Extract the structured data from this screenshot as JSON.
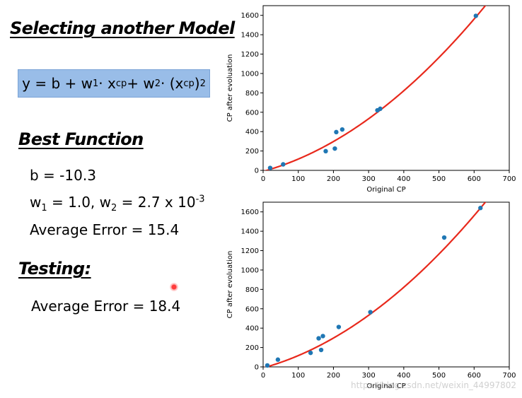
{
  "left_panel": {
    "title": "Selecting another Model",
    "formula": {
      "lhs": "y = b + w",
      "w1_sub": "1",
      "dot1": " · x",
      "xcp_sub": "cp",
      "plus2": " + w",
      "w2_sub": "2",
      "dot2": " · (x",
      "xcp2_sub": "cp",
      "close": ")",
      "exp": "2"
    },
    "best_function_title": "Best Function",
    "b_line": "b = -10.3",
    "w_line": {
      "w1": "w",
      "w1_sub": "1",
      "w1_val": " = 1.0, w",
      "w2_sub": "2",
      "w2_val": " = 2.7 x 10",
      "exp": "-3"
    },
    "average_error_train": "Average Error = 15.4",
    "testing_title": "Testing:",
    "average_error_test": "Average Error = 18.4"
  },
  "watermark": "https://blog.csdn.net/weixin_44997802",
  "colors": {
    "formula_bg": "#99bde8",
    "point": "#1f77b4",
    "curve": "#e8291c"
  },
  "chart_data": [
    {
      "type": "scatter",
      "title": "",
      "xlabel": "Original CP",
      "ylabel": "CP after evoluation",
      "xlim": [
        0,
        700
      ],
      "ylim": [
        0,
        1700
      ],
      "xticks": [
        0,
        100,
        200,
        300,
        400,
        500,
        600,
        700
      ],
      "yticks": [
        0,
        200,
        400,
        600,
        800,
        1000,
        1200,
        1400,
        1600
      ],
      "points": [
        {
          "x": 20,
          "y": 25
        },
        {
          "x": 57,
          "y": 62
        },
        {
          "x": 178,
          "y": 198
        },
        {
          "x": 204,
          "y": 225
        },
        {
          "x": 208,
          "y": 395
        },
        {
          "x": 225,
          "y": 422
        },
        {
          "x": 325,
          "y": 620
        },
        {
          "x": 333,
          "y": 636
        },
        {
          "x": 605,
          "y": 1595
        }
      ],
      "model": {
        "b": -10.3,
        "w1": 1.0,
        "w2": 0.0027
      }
    },
    {
      "type": "scatter",
      "title": "",
      "xlabel": "Original CP",
      "ylabel": "CP after evoluation",
      "xlim": [
        0,
        700
      ],
      "ylim": [
        0,
        1700
      ],
      "xticks": [
        0,
        100,
        200,
        300,
        400,
        500,
        600,
        700
      ],
      "yticks": [
        0,
        200,
        400,
        600,
        800,
        1000,
        1200,
        1400,
        1600
      ],
      "points": [
        {
          "x": 12,
          "y": 15
        },
        {
          "x": 42,
          "y": 75
        },
        {
          "x": 135,
          "y": 145
        },
        {
          "x": 158,
          "y": 295
        },
        {
          "x": 165,
          "y": 175
        },
        {
          "x": 170,
          "y": 318
        },
        {
          "x": 215,
          "y": 412
        },
        {
          "x": 305,
          "y": 565
        },
        {
          "x": 515,
          "y": 1335
        },
        {
          "x": 618,
          "y": 1640
        }
      ],
      "model": {
        "b": -10.3,
        "w1": 1.0,
        "w2": 0.0027
      }
    }
  ]
}
